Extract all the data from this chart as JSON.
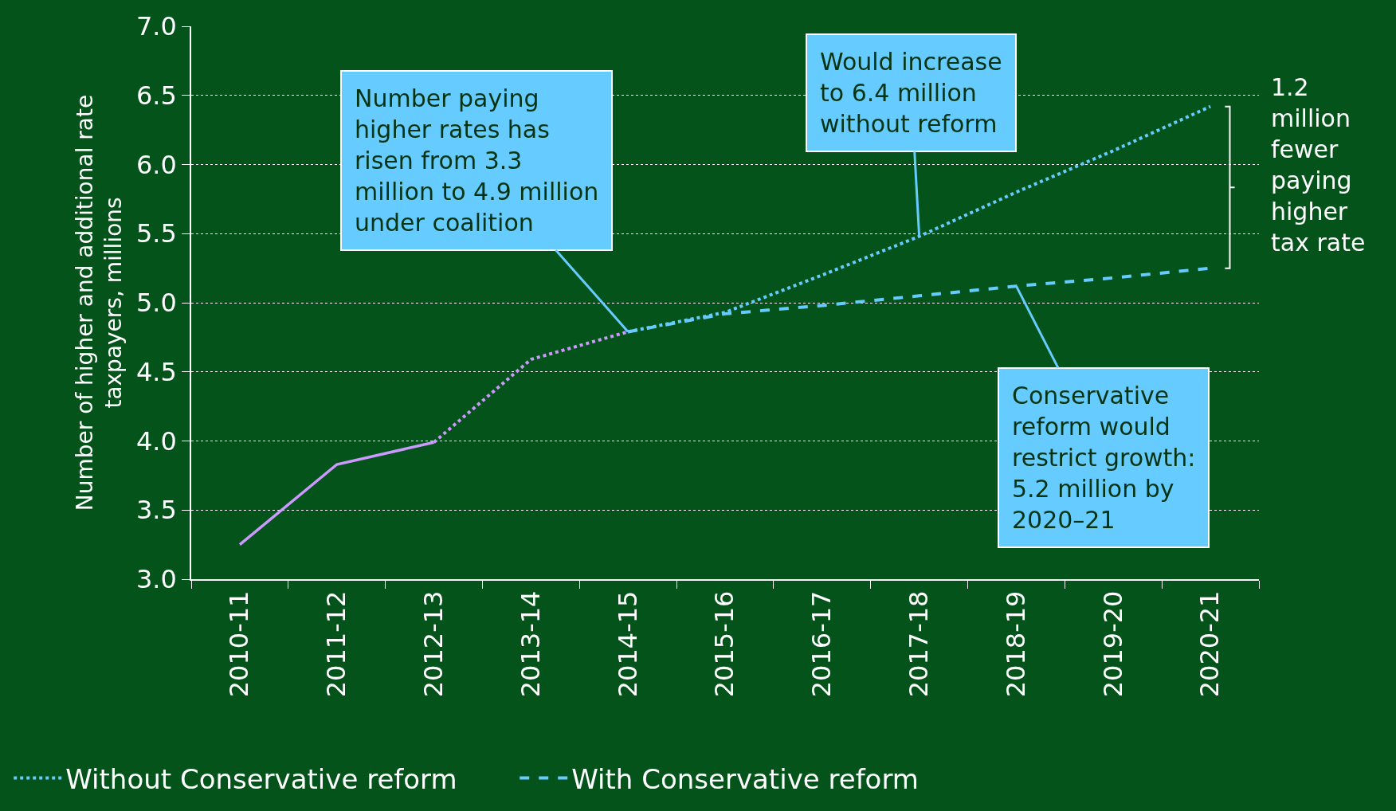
{
  "chart_data": {
    "type": "line",
    "ylabel": "Number of higher and additional rate\ntaxpayers, millions",
    "categories": [
      "2010-11",
      "2011-12",
      "2012-13",
      "2013-14",
      "2014-15",
      "2015-16",
      "2016-17",
      "2017-18",
      "2018-19",
      "2019-20",
      "2020-21"
    ],
    "series": [
      {
        "color": "#cc99ff",
        "line_style": "solid",
        "values": [
          3.25,
          3.83,
          3.99,
          null,
          null,
          null,
          null,
          null,
          null,
          null,
          null
        ]
      },
      {
        "color": "#cc99ff",
        "line_style": "dotted",
        "values": [
          null,
          null,
          3.99,
          4.59,
          4.79,
          null,
          null,
          null,
          null,
          null,
          null
        ]
      },
      {
        "name": "Without Conservative reform",
        "color": "#66ccff",
        "line_style": "dotted",
        "values": [
          null,
          null,
          null,
          null,
          4.79,
          4.93,
          5.2,
          5.48,
          5.8,
          6.1,
          6.42
        ]
      },
      {
        "name": "With Conservative reform",
        "color": "#66ccff",
        "line_style": "dashed",
        "values": [
          null,
          null,
          null,
          null,
          4.79,
          4.92,
          4.98,
          5.05,
          5.12,
          5.18,
          5.25
        ]
      }
    ],
    "ylim": [
      3.0,
      7.0
    ],
    "yticks": [
      {
        "value": 3,
        "label": "3.0"
      },
      {
        "value": 3.5,
        "label": "3.5"
      },
      {
        "value": 4,
        "label": "4.0"
      },
      {
        "value": 4.5,
        "label": "4.5"
      },
      {
        "value": 5,
        "label": "5.0"
      },
      {
        "value": 5.5,
        "label": "5.5"
      },
      {
        "value": 6,
        "label": "6.0"
      },
      {
        "value": 6.5,
        "label": "6.5"
      },
      {
        "value": 7,
        "label": "7.0"
      }
    ],
    "grid": "y",
    "legend": "bottom left",
    "marker": "none",
    "annotations": [
      {
        "text": "Number paying\nhigher rates has\nrisen from 3.3\nmillion to 4.9 million\nunder coalition",
        "x": "2014-15",
        "y": 4.79
      },
      {
        "text": "Would increase\nto 6.4 million\nwithout reform",
        "x": "2017-18",
        "y": 5.48
      },
      {
        "text": "Conservative\nreform would\nrestrict growth:\n5.2 million by\n2020–21",
        "x": "2018-19",
        "y": 5.12
      },
      "1.2\nmillion\nfewer\npaying\nhigher\ntax rate"
    ]
  }
}
